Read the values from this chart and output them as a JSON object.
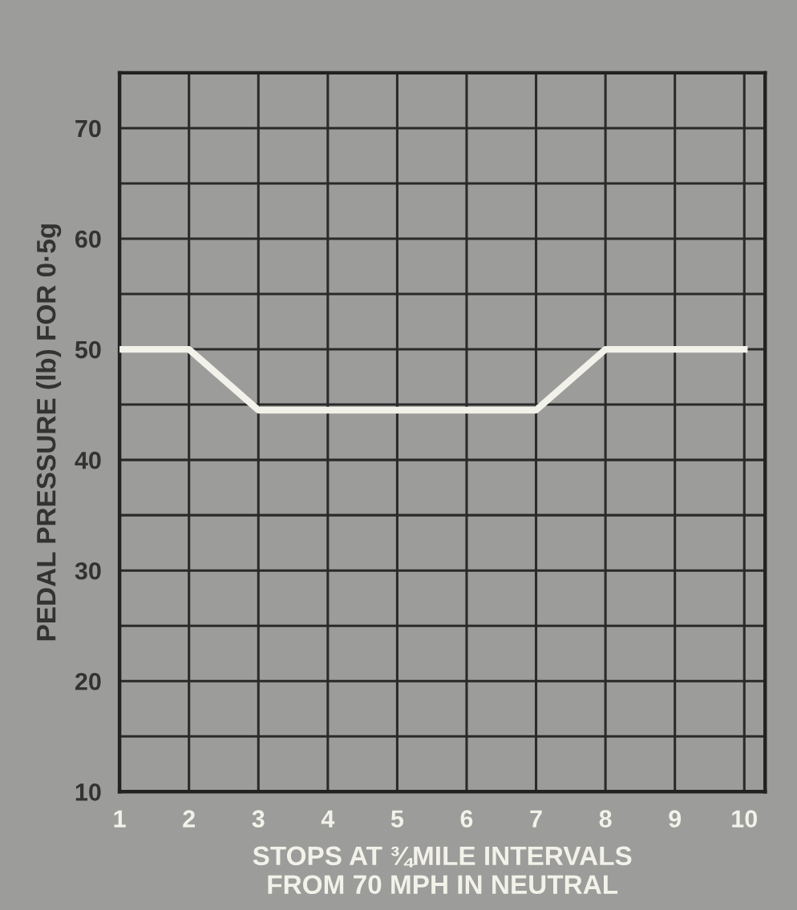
{
  "chart_data": {
    "type": "line",
    "xlabel": "STOPS AT ¾MILE INTERVALS\nFROM 70 MPH IN NEUTRAL",
    "ylabel": "PEDAL PRESSURE (lb) FOR 0·5g",
    "x": [
      1,
      2,
      3,
      7,
      8,
      10
    ],
    "series": [
      {
        "color": "#f2f2ea",
        "values": [
          50,
          50,
          44.5,
          44.5,
          50,
          50
        ]
      }
    ],
    "xlim": [
      1,
      10.3
    ],
    "ylim": [
      10,
      75
    ],
    "xticks": [
      1,
      2,
      3,
      4,
      5,
      6,
      7,
      8,
      9,
      10
    ],
    "yticks": [
      10,
      {
        "value": 15,
        "label": null
      },
      20,
      {
        "value": 25,
        "label": null
      },
      30,
      {
        "value": 35,
        "label": null
      },
      40,
      {
        "value": 45,
        "label": null
      },
      50,
      {
        "value": 55,
        "label": null
      },
      60,
      {
        "value": 65,
        "label": null
      },
      70
    ],
    "grid": true,
    "marker": "none",
    "line_style": "solid"
  }
}
